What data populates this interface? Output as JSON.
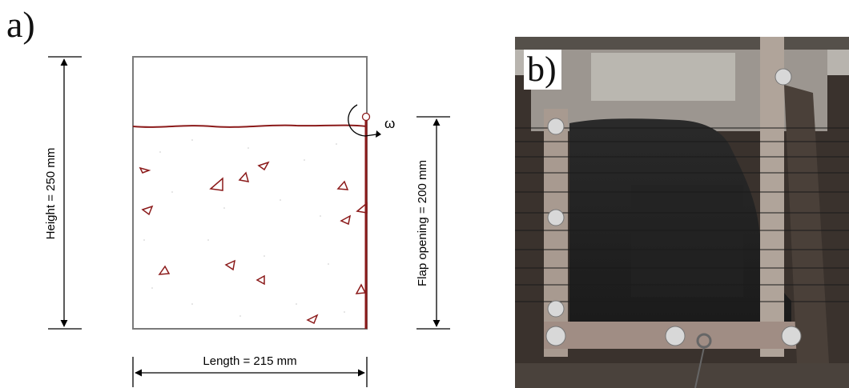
{
  "panel_a": {
    "label": "a)",
    "height_label": "Height = 250 mm",
    "flap_label": "Flap opening = 200 mm",
    "length_label": "Length = 215 mm",
    "omega_label": "ω"
  },
  "panel_b": {
    "label": "b)"
  },
  "colors": {
    "box_outline": "#7a7a7a",
    "soil_line": "#8b1a1a",
    "flap": "#8b1a1a",
    "particles": "#8b1a1a",
    "dimension_lines": "#000000"
  }
}
